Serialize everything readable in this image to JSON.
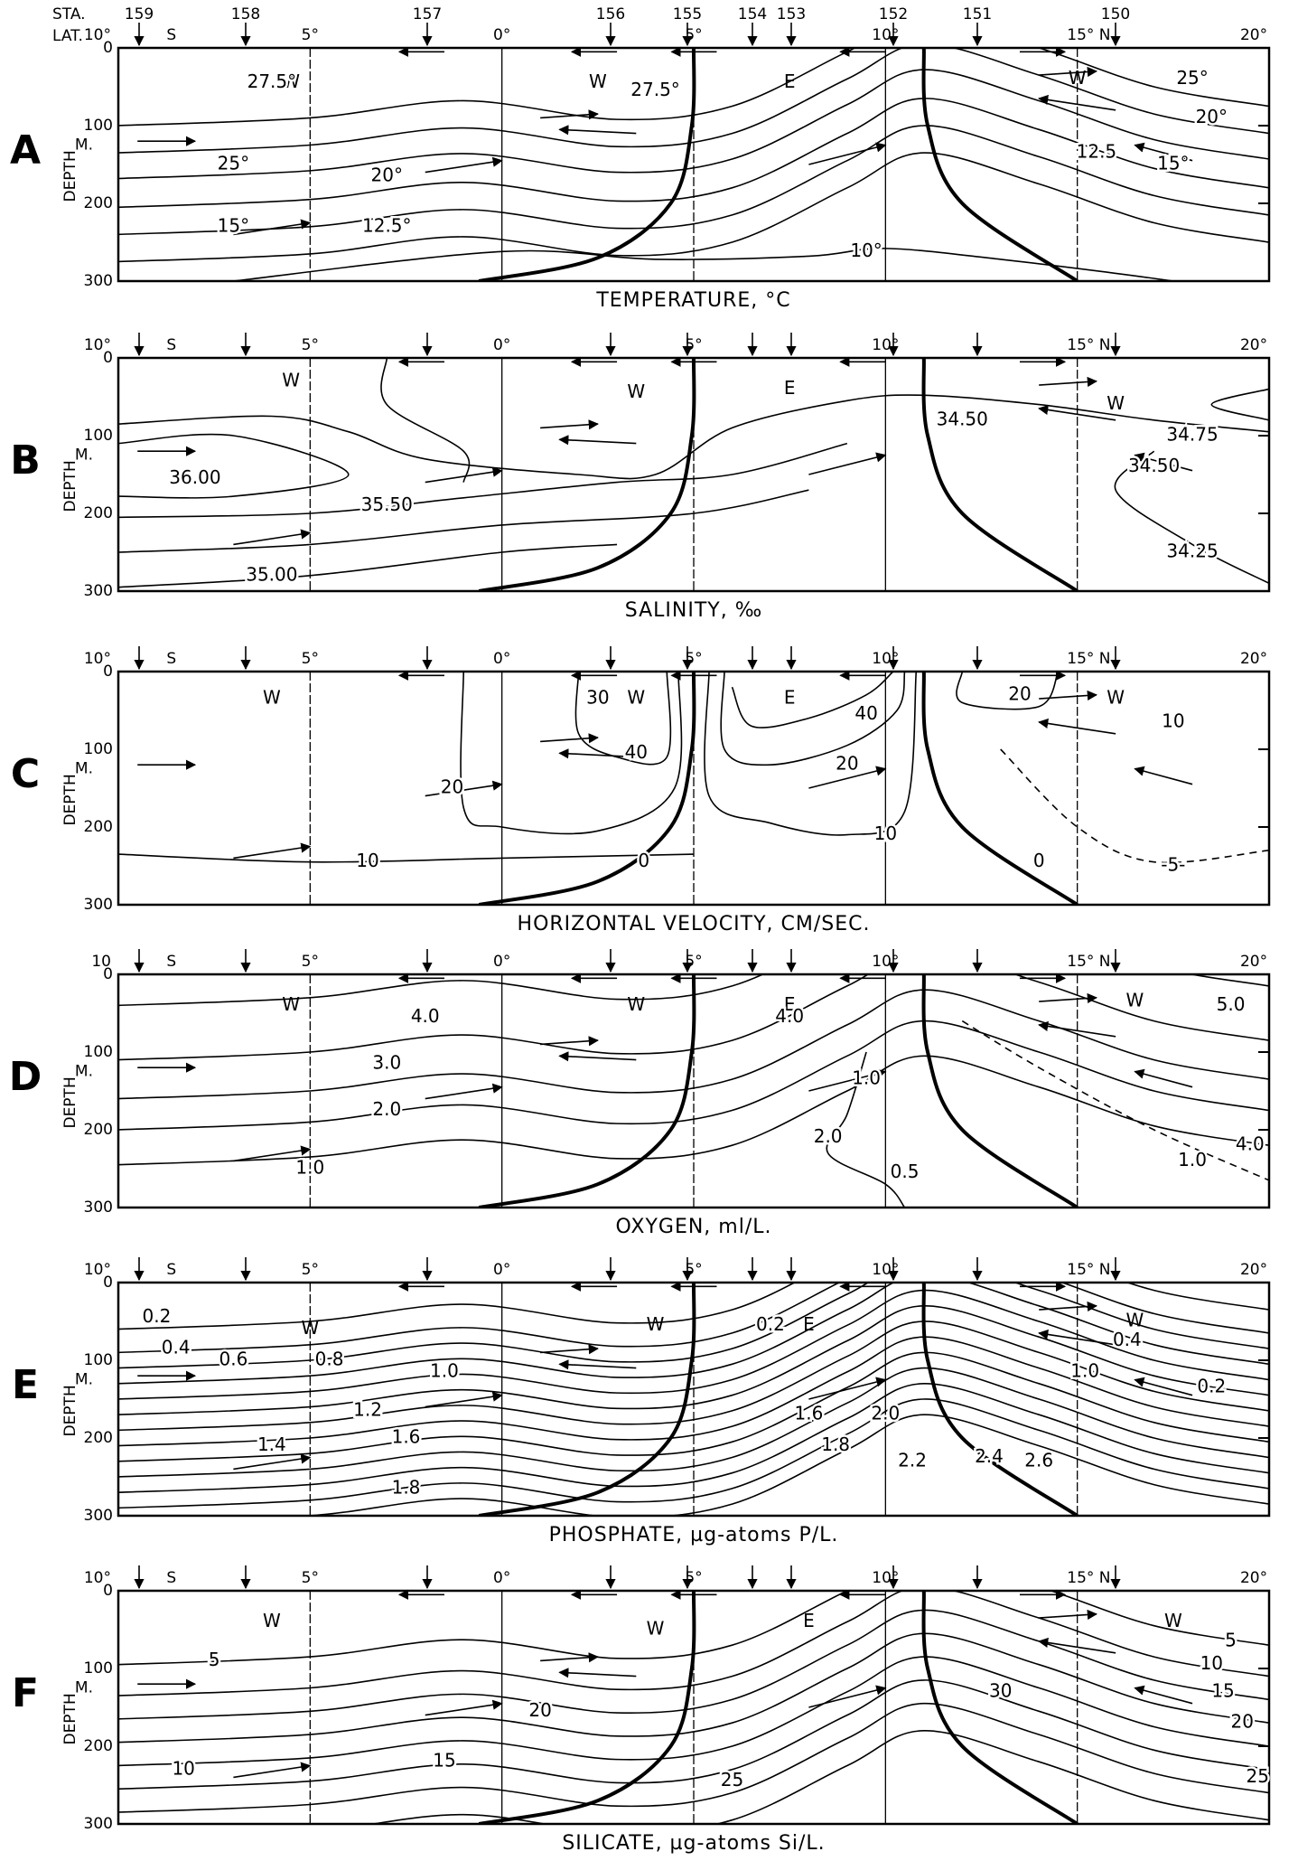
{
  "header": {
    "sta_label": "STA.",
    "lat_label": "LAT.",
    "stations": [
      "159",
      "158",
      "157",
      "156",
      "155",
      "154",
      "153",
      "152",
      "151",
      "150"
    ]
  },
  "panels": [
    {
      "letter": "A",
      "title": "TEMPERATURE, °C",
      "lat_labels": [
        "10°",
        "S",
        "5°",
        "0°",
        "5°",
        "10°",
        "15° N",
        "20°"
      ],
      "depth_label": "DEPTH",
      "depth_unit": "M.",
      "depth_ticks": [
        "0",
        "100",
        "200",
        "300"
      ],
      "water_labels": [
        "W",
        "W",
        "E",
        "W"
      ],
      "contour_labels": [
        "27.5°",
        "27.5°",
        "25°",
        "20°",
        "15°",
        "12.5°",
        "10°",
        "12.5",
        "15°",
        "20°",
        "25°"
      ]
    },
    {
      "letter": "B",
      "title": "SALINITY, ‰",
      "lat_labels": [
        "10°",
        "S",
        "5°",
        "0°",
        "5°",
        "10°",
        "15° N",
        "20°"
      ],
      "depth_label": "DEPTH",
      "depth_unit": "M.",
      "depth_ticks": [
        "0",
        "100",
        "200",
        "300"
      ],
      "water_labels": [
        "W",
        "W",
        "E",
        "W"
      ],
      "contour_labels": [
        "36.00",
        "35.50",
        "35.00",
        "34.50",
        "34.75",
        "34.50",
        "34.25"
      ]
    },
    {
      "letter": "C",
      "title": "HORIZONTAL VELOCITY, CM/SEC.",
      "lat_labels": [
        "10°",
        "S",
        "5°",
        "0°",
        "5°",
        "10°",
        "15° N",
        "20°"
      ],
      "depth_label": "DEPTH",
      "depth_unit": "M.",
      "depth_ticks": [
        "0",
        "100",
        "200",
        "300"
      ],
      "water_labels": [
        "W",
        "W",
        "E",
        "W"
      ],
      "contour_labels": [
        "30",
        "40",
        "20",
        "10",
        "0",
        "40",
        "20",
        "10",
        "0",
        "-5-",
        "20",
        "10"
      ]
    },
    {
      "letter": "D",
      "title": "OXYGEN, ml/L.",
      "lat_labels": [
        "10",
        "S",
        "5°",
        "0°",
        "5°",
        "10°",
        "15° N",
        "20°"
      ],
      "depth_label": "DEPTH",
      "depth_unit": "M.",
      "depth_ticks": [
        "0",
        "100",
        "200",
        "300"
      ],
      "water_labels": [
        "W",
        "W",
        "E",
        "W"
      ],
      "contour_labels": [
        "4.0",
        "3.0",
        "2.0",
        "1.0",
        "4.0",
        "1.0",
        "2.0",
        "0.5",
        "1.0",
        "4.0",
        "5.0"
      ]
    },
    {
      "letter": "E",
      "title": "PHOSPHATE, µg-atoms P/L.",
      "lat_labels": [
        "10°",
        "S",
        "5°",
        "0°",
        "5°",
        "10°",
        "15° N",
        "20°"
      ],
      "depth_label": "DEPTH",
      "depth_unit": "M.",
      "depth_ticks": [
        "0",
        "100",
        "200",
        "300"
      ],
      "water_labels": [
        "W",
        "W",
        "E",
        "W"
      ],
      "contour_labels": [
        "0.2",
        "0.4",
        "0.6",
        "0.8",
        "1.0",
        "1.2",
        "1.4",
        "1.6",
        "1.8",
        "0.2",
        "1.6",
        "2.0",
        "1.8",
        "2.2",
        "2.4",
        "2.6",
        "0.4",
        "1.0",
        "0.2"
      ]
    },
    {
      "letter": "F",
      "title": "SILICATE, µg-atoms Si/L.",
      "lat_labels": [
        "10°",
        "S",
        "5°",
        "0°",
        "5°",
        "10°",
        "15° N",
        "20°"
      ],
      "depth_label": "DEPTH",
      "depth_unit": "M.",
      "depth_ticks": [
        "0",
        "100",
        "200",
        "300"
      ],
      "water_labels": [
        "W",
        "W",
        "E",
        "W"
      ],
      "contour_labels": [
        "5",
        "10",
        "15",
        "20",
        "25",
        "30",
        "5",
        "10",
        "15",
        "20",
        "25"
      ]
    }
  ]
}
